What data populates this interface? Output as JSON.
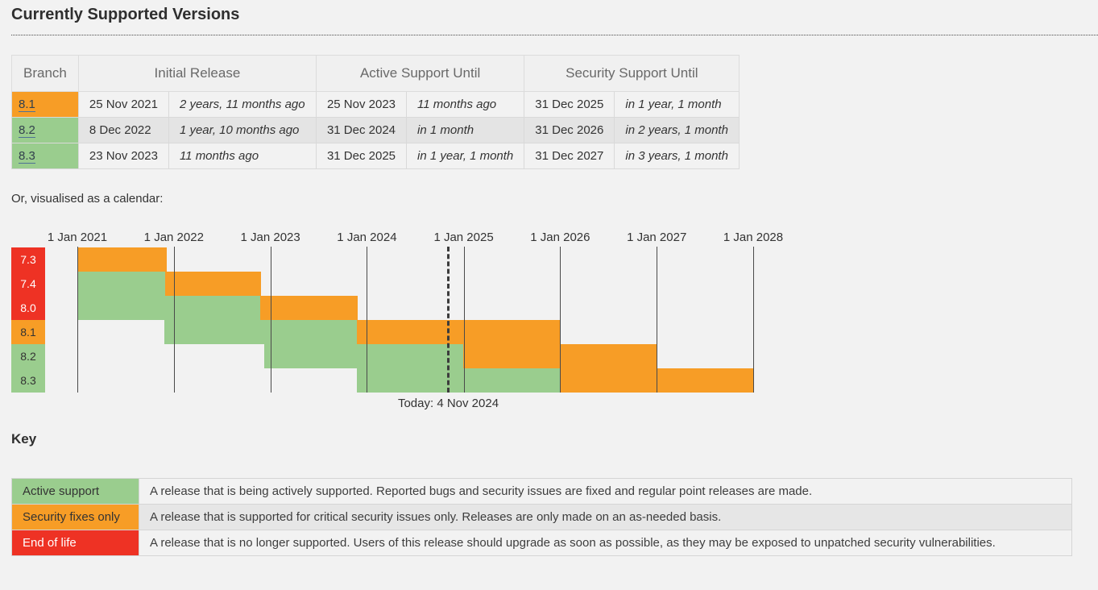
{
  "page": {
    "title": "Currently Supported Versions",
    "calendar_caption": "Or, visualised as a calendar:",
    "key_title": "Key"
  },
  "colors": {
    "active": "#9acd8e",
    "security": "#f79d26",
    "eol": "#ee3224"
  },
  "versions_table": {
    "headers": {
      "branch": "Branch",
      "initial": "Initial Release",
      "active": "Active Support Until",
      "security": "Security Support Until"
    },
    "rows": [
      {
        "branch": "8.1",
        "status": "security",
        "initial_date": "25 Nov 2021",
        "initial_rel": "2 years, 11 months ago",
        "active_date": "25 Nov 2023",
        "active_rel": "11 months ago",
        "security_date": "31 Dec 2025",
        "security_rel": "in 1 year, 1 month"
      },
      {
        "branch": "8.2",
        "status": "active",
        "initial_date": "8 Dec 2022",
        "initial_rel": "1 year, 10 months ago",
        "active_date": "31 Dec 2024",
        "active_rel": "in 1 month",
        "security_date": "31 Dec 2026",
        "security_rel": "in 2 years, 1 month"
      },
      {
        "branch": "8.3",
        "status": "active",
        "initial_date": "23 Nov 2023",
        "initial_rel": "11 months ago",
        "active_date": "31 Dec 2025",
        "active_rel": "in 1 year, 1 month",
        "security_date": "31 Dec 2027",
        "security_rel": "in 3 years, 1 month"
      }
    ]
  },
  "chart_data": {
    "type": "gantt",
    "title": "PHP branch support calendar",
    "axis": {
      "start_date": "2021-01-01",
      "end_date": "2028-01-01",
      "ticks": [
        {
          "label": "1 Jan 2021",
          "date": "2021-01-01"
        },
        {
          "label": "1 Jan 2022",
          "date": "2022-01-01"
        },
        {
          "label": "1 Jan 2023",
          "date": "2023-01-01"
        },
        {
          "label": "1 Jan 2024",
          "date": "2024-01-01"
        },
        {
          "label": "1 Jan 2025",
          "date": "2025-01-01"
        },
        {
          "label": "1 Jan 2026",
          "date": "2026-01-01"
        },
        {
          "label": "1 Jan 2027",
          "date": "2027-01-01"
        },
        {
          "label": "1 Jan 2028",
          "date": "2028-01-01"
        }
      ]
    },
    "today": {
      "date": "2024-11-04",
      "label": "Today: 4 Nov 2024"
    },
    "rows": [
      {
        "label": "7.3",
        "status": "eol",
        "segments": [
          {
            "type": "security",
            "start": "2021-01-01",
            "end": "2021-12-06"
          }
        ]
      },
      {
        "label": "7.4",
        "status": "eol",
        "segments": [
          {
            "type": "active",
            "start": "2021-01-01",
            "end": "2021-11-28"
          },
          {
            "type": "security",
            "start": "2021-11-28",
            "end": "2022-11-28"
          }
        ]
      },
      {
        "label": "8.0",
        "status": "eol",
        "segments": [
          {
            "type": "active",
            "start": "2021-01-01",
            "end": "2022-11-25"
          },
          {
            "type": "security",
            "start": "2022-11-25",
            "end": "2023-11-26"
          }
        ]
      },
      {
        "label": "8.1",
        "status": "security",
        "segments": [
          {
            "type": "active",
            "start": "2021-11-25",
            "end": "2023-11-25"
          },
          {
            "type": "security",
            "start": "2023-11-25",
            "end": "2025-12-31"
          }
        ]
      },
      {
        "label": "8.2",
        "status": "active",
        "segments": [
          {
            "type": "active",
            "start": "2022-12-08",
            "end": "2024-12-31"
          },
          {
            "type": "security",
            "start": "2024-12-31",
            "end": "2026-12-31"
          }
        ]
      },
      {
        "label": "8.3",
        "status": "active",
        "segments": [
          {
            "type": "active",
            "start": "2023-11-23",
            "end": "2025-12-31"
          },
          {
            "type": "security",
            "start": "2025-12-31",
            "end": "2027-12-31"
          }
        ]
      }
    ]
  },
  "key": {
    "entries": [
      {
        "id": "active",
        "label": "Active support",
        "text": "A release that is being actively supported. Reported bugs and security issues are fixed and regular point releases are made."
      },
      {
        "id": "security",
        "label": "Security fixes only",
        "text": "A release that is supported for critical security issues only. Releases are only made on an as-needed basis."
      },
      {
        "id": "eol",
        "label": "End of life",
        "text": "A release that is no longer supported. Users of this release should upgrade as soon as possible, as they may be exposed to unpatched security vulnerabilities."
      }
    ]
  }
}
